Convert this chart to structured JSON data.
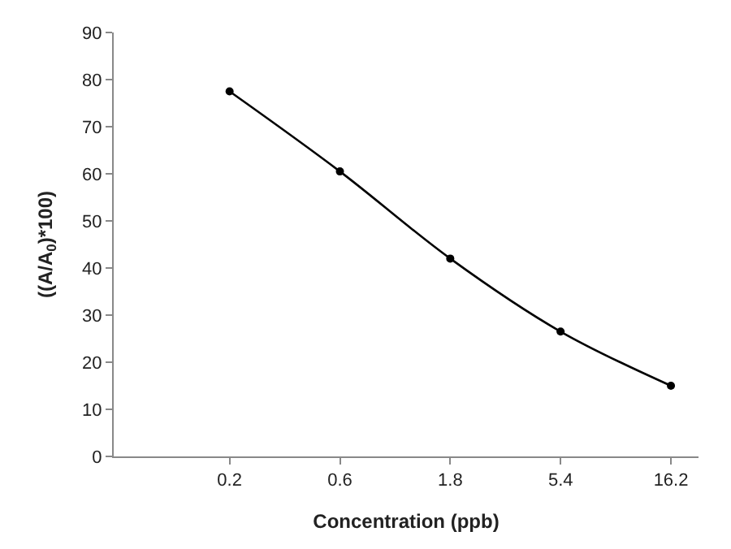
{
  "chart_data": {
    "type": "line",
    "xlabel": "Concentration (ppb)",
    "ylabel": "((A/A$_{0}$)*100)",
    "categories": [
      "0.2",
      "0.6",
      "1.8",
      "5.4",
      "16.2"
    ],
    "series": [
      {
        "color": "#000000",
        "values": [
          77.5,
          60.5,
          42,
          26.5,
          15
        ]
      }
    ],
    "ylim": [
      0,
      90
    ],
    "yticks": [
      0,
      10,
      20,
      30,
      40,
      50,
      60,
      70,
      80,
      90
    ],
    "legend": false,
    "marker": "circle",
    "line_style": "solid"
  }
}
